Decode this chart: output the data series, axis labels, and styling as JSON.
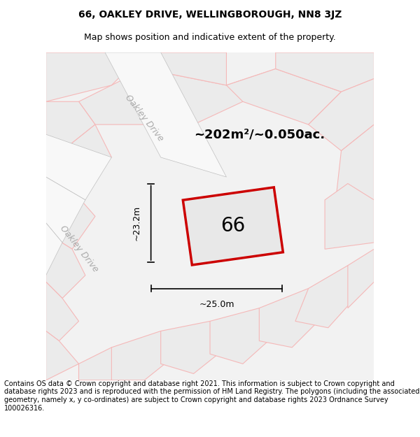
{
  "title_line1": "66, OAKLEY DRIVE, WELLINGBOROUGH, NN8 3JZ",
  "title_line2": "Map shows position and indicative extent of the property.",
  "footer_text": "Contains OS data © Crown copyright and database right 2021. This information is subject to Crown copyright and database rights 2023 and is reproduced with the permission of HM Land Registry. The polygons (including the associated geometry, namely x, y co-ordinates) are subject to Crown copyright and database rights 2023 Ordnance Survey 100026316.",
  "area_label": "~202m²/~0.050ac.",
  "house_number": "66",
  "dim_width": "~25.0m",
  "dim_height": "~23.2m",
  "map_bg": "#f2f2f2",
  "plot_fill": "#e8e8e8",
  "plot_edge_color": "#cc0000",
  "road_color_light": "#f5b8b8",
  "road_color_gray": "#c8c8c8",
  "oakley_drive_label": "Oakley Drive",
  "title_fontsize": 10,
  "subtitle_fontsize": 9,
  "footer_fontsize": 7.0,
  "map_xlim": [
    0,
    1
  ],
  "map_ylim": [
    0,
    1
  ]
}
